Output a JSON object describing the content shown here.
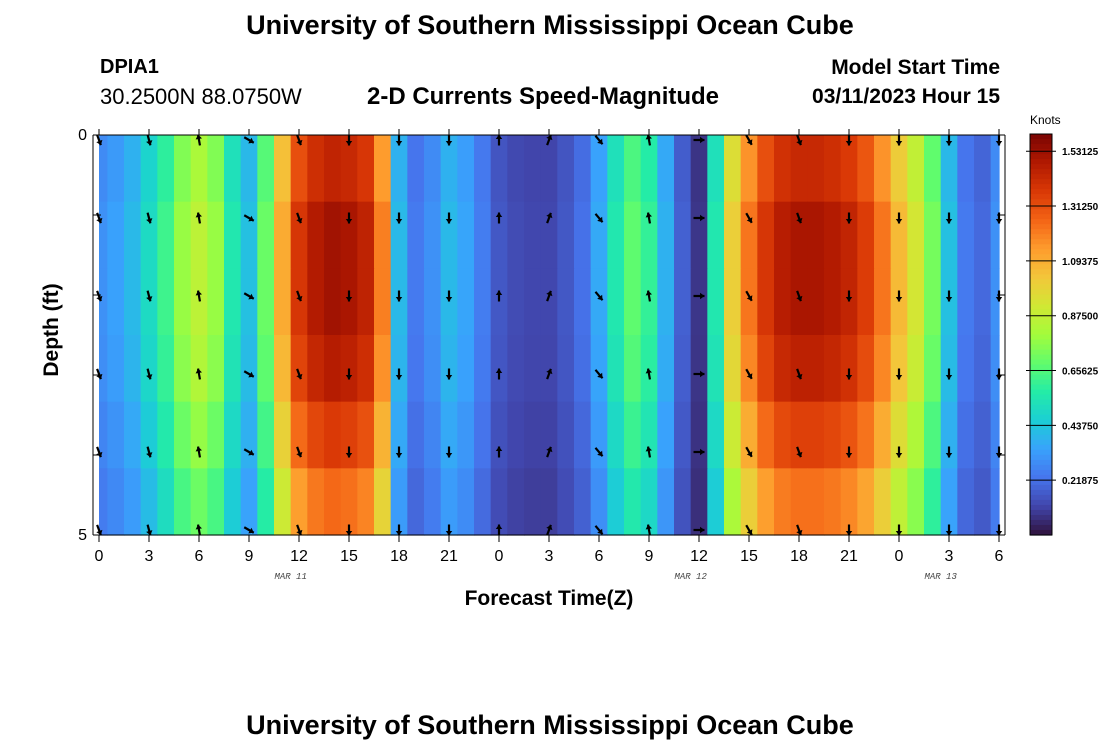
{
  "header": {
    "main_title": "University of Southern Mississippi Ocean Cube",
    "station_id": "DPIA1",
    "coordinates": "30.2500N  88.0750W",
    "subtitle": "2-D Currents Speed-Magnitude",
    "model_start_label": "Model Start Time",
    "model_start_value": "03/11/2023 Hour 15",
    "bottom_title": "University of Southern Mississippi Ocean Cube"
  },
  "colorbar": {
    "units": "Knots",
    "labels": [
      "1.53125",
      "1.31250",
      "1.09375",
      "0.87500",
      "0.65625",
      "0.43750",
      "0.21875"
    ],
    "min": 0.0,
    "max": 1.6,
    "colors": [
      "#30123b",
      "#4145ab",
      "#4675ed",
      "#39a2fc",
      "#1bcfd4",
      "#24eca6",
      "#61fc6c",
      "#a4fc3b",
      "#d1e834",
      "#f3c63a",
      "#fe9b2d",
      "#f36315",
      "#d93806",
      "#b11901",
      "#7a0403"
    ]
  },
  "chart_data": {
    "type": "heatmap",
    "title": "2-D Currents Speed-Magnitude",
    "xlabel": "Forecast Time(Z)",
    "ylabel": "Depth (ft)",
    "x_hours": [
      0,
      1,
      2,
      3,
      4,
      5,
      6,
      7,
      8,
      9,
      10,
      11,
      12,
      13,
      14,
      15,
      16,
      17,
      18,
      19,
      20,
      21,
      22,
      23,
      24,
      25,
      26,
      27,
      28,
      29,
      30,
      31,
      32,
      33,
      34,
      35,
      36,
      37,
      38,
      39,
      40,
      41,
      42,
      43,
      44,
      45,
      46,
      47,
      48,
      49,
      50,
      51,
      52,
      53,
      54
    ],
    "x_tick_labels": [
      "0",
      "3",
      "6",
      "9",
      "12",
      "15",
      "18",
      "21",
      "0",
      "3",
      "6",
      "9",
      "12",
      "15",
      "18",
      "21",
      "0",
      "3",
      "6"
    ],
    "date_labels": [
      {
        "text": "MAR 11",
        "hour": 11.5
      },
      {
        "text": "MAR 12",
        "hour": 35.5
      },
      {
        "text": "MAR 13",
        "hour": 50.5
      }
    ],
    "y_range": [
      0,
      5
    ],
    "y_tick_labels": [
      "0",
      "5"
    ],
    "depth_layers": 5,
    "speed_profile_knots": [
      0.3,
      0.34,
      0.4,
      0.5,
      0.62,
      0.78,
      0.86,
      0.78,
      0.55,
      0.42,
      0.7,
      1.1,
      1.38,
      1.48,
      1.52,
      1.5,
      1.45,
      1.2,
      0.4,
      0.24,
      0.3,
      0.4,
      0.35,
      0.25,
      0.16,
      0.13,
      0.12,
      0.12,
      0.16,
      0.22,
      0.36,
      0.55,
      0.68,
      0.6,
      0.38,
      0.18,
      0.08,
      0.55,
      1.0,
      1.22,
      1.38,
      1.47,
      1.5,
      1.5,
      1.48,
      1.44,
      1.36,
      1.22,
      1.06,
      0.92,
      0.72,
      0.42,
      0.24,
      0.2,
      0.3
    ],
    "depth_factor": [
      0.95,
      1.0,
      1.0,
      0.97,
      0.9,
      0.82
    ],
    "vector_hours": [
      0,
      3,
      6,
      9,
      12,
      15,
      18,
      21,
      24,
      27,
      30,
      33,
      36,
      39,
      42,
      45,
      48,
      51,
      54
    ],
    "vector_direction_deg": [
      160,
      165,
      350,
      120,
      160,
      180,
      180,
      180,
      0,
      20,
      140,
      350,
      90,
      150,
      160,
      180,
      180,
      180,
      180
    ]
  }
}
